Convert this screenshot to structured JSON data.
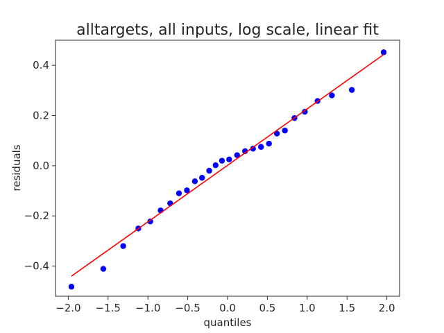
{
  "chart_data": {
    "type": "scatter",
    "title": "alltargets, all inputs, log scale, linear fit",
    "xlabel": "quantiles",
    "ylabel": "residuals",
    "xlim": [
      -2.16,
      2.16
    ],
    "ylim": [
      -0.52,
      0.5
    ],
    "xticks": [
      -2.0,
      -1.5,
      -1.0,
      -0.5,
      0.0,
      0.5,
      1.0,
      1.5,
      2.0
    ],
    "xtick_labels": [
      "−2.0",
      "−1.5",
      "−1.0",
      "−0.5",
      "0.0",
      "0.5",
      "1.0",
      "1.5",
      "2.0"
    ],
    "yticks": [
      -0.4,
      -0.2,
      0.0,
      0.2,
      0.4
    ],
    "ytick_labels": [
      "−0.4",
      "−0.2",
      "0.0",
      "0.2",
      "0.4"
    ],
    "grid": false,
    "legend": "none",
    "marker_color": "#0000ff",
    "line_color": "#ff0000",
    "series": [
      {
        "type": "scatter",
        "points": [
          [
            -1.96,
            -0.482
          ],
          [
            -1.56,
            -0.411
          ],
          [
            -1.31,
            -0.32
          ],
          [
            -1.12,
            -0.25
          ],
          [
            -0.97,
            -0.222
          ],
          [
            -0.84,
            -0.178
          ],
          [
            -0.72,
            -0.15
          ],
          [
            -0.61,
            -0.11
          ],
          [
            -0.51,
            -0.098
          ],
          [
            -0.41,
            -0.062
          ],
          [
            -0.32,
            -0.048
          ],
          [
            -0.23,
            -0.02
          ],
          [
            -0.15,
            0.002
          ],
          [
            -0.07,
            0.02
          ],
          [
            0.02,
            0.025
          ],
          [
            0.12,
            0.042
          ],
          [
            0.22,
            0.058
          ],
          [
            0.32,
            0.068
          ],
          [
            0.42,
            0.075
          ],
          [
            0.52,
            0.088
          ],
          [
            0.62,
            0.128
          ],
          [
            0.72,
            0.14
          ],
          [
            0.84,
            0.19
          ],
          [
            0.97,
            0.215
          ],
          [
            1.13,
            0.258
          ],
          [
            1.31,
            0.28
          ],
          [
            1.56,
            0.302
          ],
          [
            1.96,
            0.452
          ]
        ]
      },
      {
        "type": "line",
        "points": [
          [
            -1.96,
            -0.44
          ],
          [
            1.96,
            0.443
          ]
        ]
      }
    ]
  }
}
